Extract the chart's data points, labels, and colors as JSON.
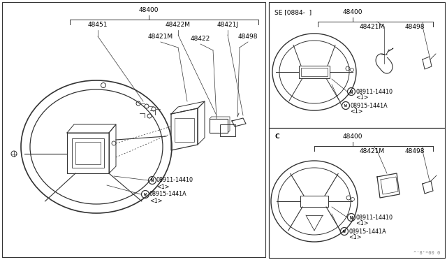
{
  "bg_color": "#ffffff",
  "line_color": "#333333",
  "text_color": "#000000",
  "fig_width": 6.4,
  "fig_height": 3.72,
  "dpi": 100,
  "watermark": "^'8'*00 0",
  "left_panel": {
    "part_48400": "48400",
    "part_48451": "48451",
    "part_48422M": "48422M",
    "part_48421J": "48421J",
    "part_48421M": "48421M",
    "part_48422": "48422",
    "part_48498": "48498",
    "label_N1": "08911-14410",
    "label_N1_sub": "<1>",
    "label_N2": "08915-1441A",
    "label_N2_sub": "<1>"
  },
  "top_right_panel": {
    "header": "SE [0884-  ]",
    "part_48400": "48400",
    "part_48421M": "48421M",
    "part_48498": "48498",
    "label_N1": "08911-14410",
    "label_N1_sub": "<1>",
    "label_N2": "08915-1441A",
    "label_N2_sub": "<1>"
  },
  "bottom_right_panel": {
    "header": "C",
    "part_48400": "48400",
    "part_48421M": "48421M",
    "part_48498": "48498",
    "label_N1": "08911-14410",
    "label_N1_sub": "<1>",
    "label_N2": "08915-1441A",
    "label_N2_sub": "<1>"
  }
}
